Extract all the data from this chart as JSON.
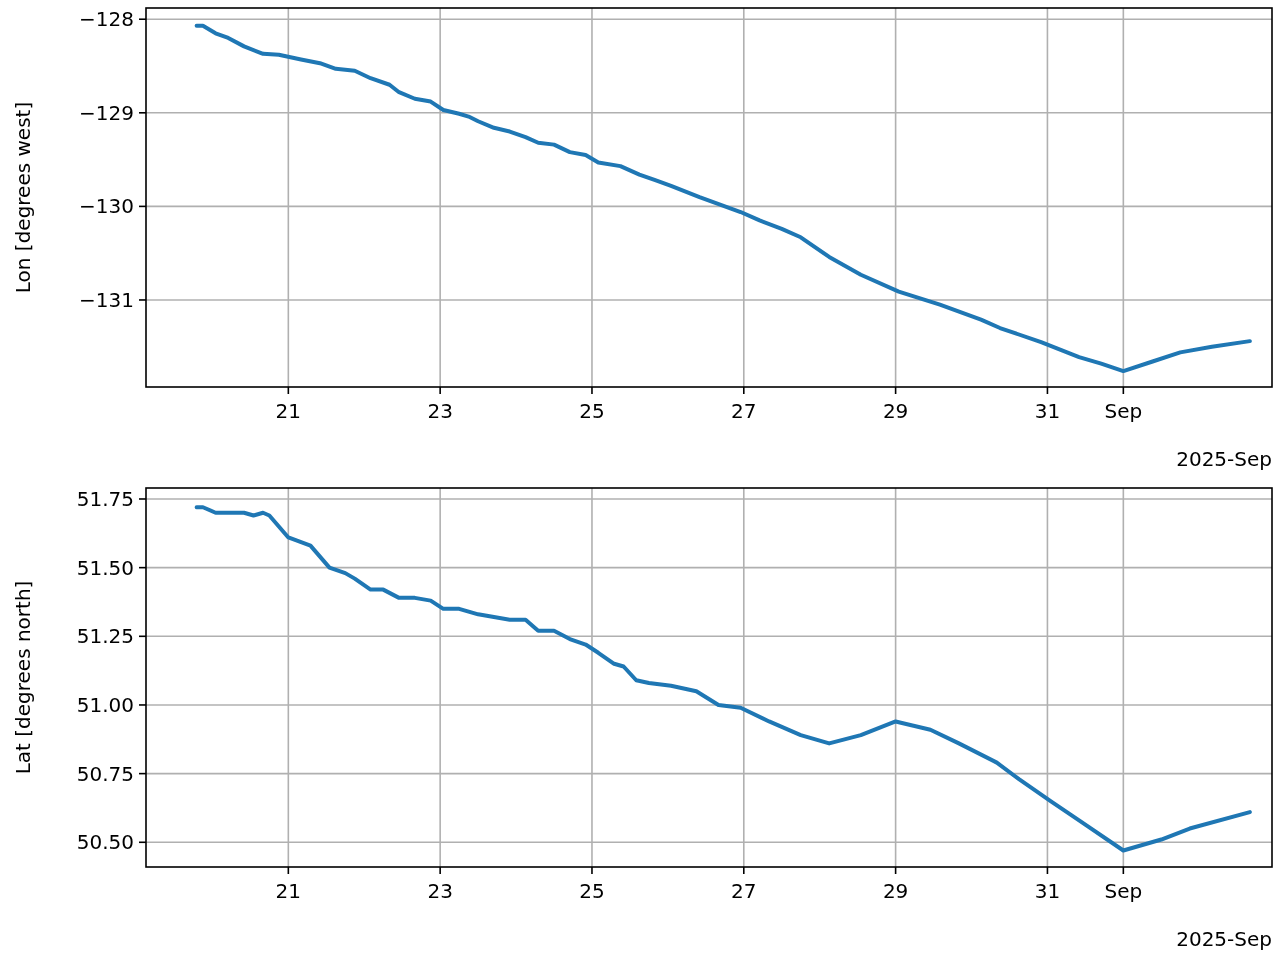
{
  "chart_data": [
    {
      "type": "line",
      "ylabel": "Lon [degrees west]",
      "grid": true,
      "line_style": "solid",
      "annotations": [
        "2025-Sep"
      ],
      "xlim": [
        "2025-08-19T03:00",
        "2025-09-02T23:00"
      ],
      "ylim": [
        -131.93,
        -127.88
      ],
      "xticks": [
        {
          "value": "2025-08-21",
          "label": "21"
        },
        {
          "value": "2025-08-23",
          "label": "23"
        },
        {
          "value": "2025-08-25",
          "label": "25"
        },
        {
          "value": "2025-08-27",
          "label": "27"
        },
        {
          "value": "2025-08-29",
          "label": "29"
        },
        {
          "value": "2025-08-31",
          "label": "31"
        },
        {
          "value": "2025-09-01",
          "label": "Sep"
        }
      ],
      "yticks": [
        {
          "value": -131,
          "label": "−131"
        },
        {
          "value": -130,
          "label": "−130"
        },
        {
          "value": -129,
          "label": "−129"
        },
        {
          "value": -128,
          "label": "−128"
        }
      ],
      "series": [
        {
          "color": "#1f77b4",
          "x": [
            "2025-08-19T19:00",
            "2025-08-19T21:00",
            "2025-08-20T01:00",
            "2025-08-20T05:00",
            "2025-08-20T10:00",
            "2025-08-20T16:00",
            "2025-08-20T21:00",
            "2025-08-21T04:00",
            "2025-08-21T10:00",
            "2025-08-21T15:00",
            "2025-08-21T21:00",
            "2025-08-22T02:00",
            "2025-08-22T08:00",
            "2025-08-22T11:00",
            "2025-08-22T16:00",
            "2025-08-22T21:00",
            "2025-08-23T01:00",
            "2025-08-23T06:00",
            "2025-08-23T09:00",
            "2025-08-23T12:00",
            "2025-08-23T17:00",
            "2025-08-23T22:00",
            "2025-08-24T03:00",
            "2025-08-24T07:00",
            "2025-08-24T12:00",
            "2025-08-24T17:00",
            "2025-08-24T22:00",
            "2025-08-25T02:00",
            "2025-08-25T09:00",
            "2025-08-25T15:00",
            "2025-08-25T20:00",
            "2025-08-26T01:00",
            "2025-08-26T10:00",
            "2025-08-26T23:00",
            "2025-08-27T05:00",
            "2025-08-27T12:00",
            "2025-08-27T18:00",
            "2025-08-28T03:00",
            "2025-08-28T13:00",
            "2025-08-29T01:00",
            "2025-08-29T14:00",
            "2025-08-30T03:00",
            "2025-08-30T09:00",
            "2025-08-30T22:00",
            "2025-08-31T10:00",
            "2025-08-31T17:00",
            "2025-09-01T00:00",
            "2025-09-01T09:00",
            "2025-09-01T18:00",
            "2025-09-02T04:00",
            "2025-09-02T16:00"
          ],
          "values": [
            -128.07,
            -128.07,
            -128.15,
            -128.2,
            -128.29,
            -128.37,
            -128.38,
            -128.43,
            -128.47,
            -128.53,
            -128.55,
            -128.63,
            -128.7,
            -128.78,
            -128.85,
            -128.88,
            -128.97,
            -129.01,
            -129.04,
            -129.09,
            -129.16,
            -129.2,
            -129.26,
            -129.32,
            -129.34,
            -129.42,
            -129.45,
            -129.53,
            -129.57,
            -129.66,
            -129.72,
            -129.78,
            -129.9,
            -130.06,
            -130.15,
            -130.24,
            -130.33,
            -130.54,
            -130.73,
            -130.91,
            -131.05,
            -131.21,
            -131.3,
            -131.45,
            -131.61,
            -131.68,
            -131.76,
            -131.66,
            -131.56,
            -131.5,
            -131.44
          ]
        }
      ]
    },
    {
      "type": "line",
      "ylabel": "Lat [degrees north]",
      "grid": true,
      "line_style": "solid",
      "annotations": [
        "2025-Sep"
      ],
      "xlim": [
        "2025-08-19T03:00",
        "2025-09-02T23:00"
      ],
      "ylim": [
        50.41,
        51.79
      ],
      "xticks": [
        {
          "value": "2025-08-21",
          "label": "21"
        },
        {
          "value": "2025-08-23",
          "label": "23"
        },
        {
          "value": "2025-08-25",
          "label": "25"
        },
        {
          "value": "2025-08-27",
          "label": "27"
        },
        {
          "value": "2025-08-29",
          "label": "29"
        },
        {
          "value": "2025-08-31",
          "label": "31"
        },
        {
          "value": "2025-09-01",
          "label": "Sep"
        }
      ],
      "yticks": [
        {
          "value": 50.5,
          "label": "50.50"
        },
        {
          "value": 50.75,
          "label": "50.75"
        },
        {
          "value": 51,
          "label": "51.00"
        },
        {
          "value": 51.25,
          "label": "51.25"
        },
        {
          "value": 51.5,
          "label": "51.50"
        },
        {
          "value": 51.75,
          "label": "51.75"
        }
      ],
      "series": [
        {
          "color": "#1f77b4",
          "x": [
            "2025-08-19T19:00",
            "2025-08-19T21:00",
            "2025-08-20T01:00",
            "2025-08-20T05:00",
            "2025-08-20T10:00",
            "2025-08-20T13:00",
            "2025-08-20T16:00",
            "2025-08-20T18:00",
            "2025-08-20T21:00",
            "2025-08-21T00:00",
            "2025-08-21T07:00",
            "2025-08-21T10:00",
            "2025-08-21T13:00",
            "2025-08-21T18:00",
            "2025-08-21T21:00",
            "2025-08-22T02:00",
            "2025-08-22T06:00",
            "2025-08-22T11:00",
            "2025-08-22T16:00",
            "2025-08-22T21:00",
            "2025-08-23T01:00",
            "2025-08-23T06:00",
            "2025-08-23T09:00",
            "2025-08-23T12:00",
            "2025-08-23T17:00",
            "2025-08-23T22:00",
            "2025-08-24T03:00",
            "2025-08-24T07:00",
            "2025-08-24T12:00",
            "2025-08-24T17:00",
            "2025-08-24T22:00",
            "2025-08-25T02:00",
            "2025-08-25T07:00",
            "2025-08-25T10:00",
            "2025-08-25T14:00",
            "2025-08-25T18:00",
            "2025-08-26T01:00",
            "2025-08-26T09:00",
            "2025-08-26T16:00",
            "2025-08-26T23:00",
            "2025-08-27T08:00",
            "2025-08-27T18:00",
            "2025-08-28T03:00",
            "2025-08-28T13:00",
            "2025-08-29T00:00",
            "2025-08-29T11:00",
            "2025-08-29T20:00",
            "2025-08-30T08:00",
            "2025-08-30T15:00",
            "2025-08-31T01:00",
            "2025-08-31T10:00",
            "2025-09-01T00:00",
            "2025-09-01T12:00",
            "2025-09-01T21:00",
            "2025-09-02T16:00"
          ],
          "values": [
            51.72,
            51.72,
            51.7,
            51.7,
            51.7,
            51.69,
            51.7,
            51.69,
            51.65,
            51.61,
            51.58,
            51.54,
            51.5,
            51.48,
            51.46,
            51.42,
            51.42,
            51.39,
            51.39,
            51.38,
            51.35,
            51.35,
            51.34,
            51.33,
            51.32,
            51.31,
            51.31,
            51.27,
            51.27,
            51.24,
            51.22,
            51.19,
            51.15,
            51.14,
            51.09,
            51.08,
            51.07,
            51.05,
            51.0,
            50.99,
            50.94,
            50.89,
            50.86,
            50.89,
            50.94,
            50.91,
            50.86,
            50.79,
            50.73,
            50.65,
            50.58,
            50.47,
            50.51,
            50.55,
            50.61
          ]
        }
      ]
    }
  ]
}
